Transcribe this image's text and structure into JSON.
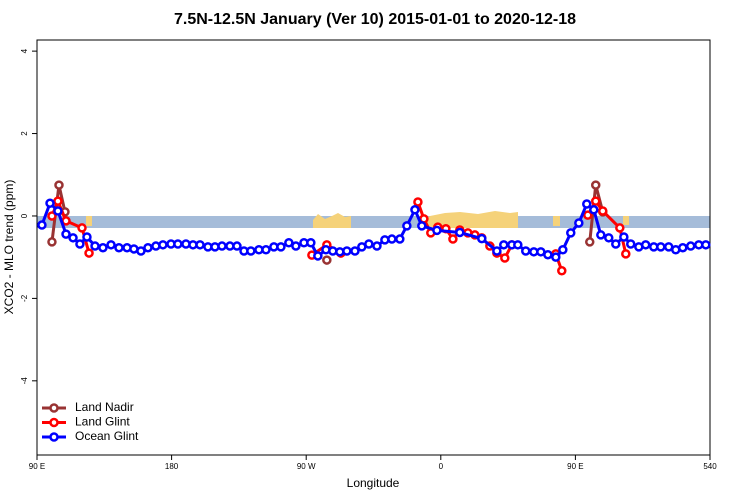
{
  "chart_data": {
    "type": "line",
    "title": "7.5N-12.5N January (Ver 10)   2015-01-01 to 2020-12-18",
    "x_label": "Longitude",
    "y_label": "XCO2 - MLO trend (ppm)",
    "xlim": [
      90,
      540
    ],
    "ylim": [
      -5.8,
      4.27
    ],
    "xticks": [
      {
        "value": 90,
        "label": "90 E"
      },
      180,
      {
        "value": 270,
        "label": "90 W"
      },
      {
        "value": 360,
        "label": "0"
      },
      {
        "value": 450,
        "label": "90 E"
      },
      540
    ],
    "yticks": [
      4,
      2,
      0,
      -2,
      -4
    ],
    "legend": "bottom-left",
    "series": [
      {
        "name": "Land Nadir",
        "color": "#993333",
        "x": [
          100,
          104.7,
          108.7,
          200,
          283.8,
          370,
          459.6,
          463.6,
          468.3
        ],
        "values": [
          -0.63,
          0.75,
          0.1,
          null,
          -1.07,
          null,
          -0.63,
          0.75,
          0.1
        ]
      },
      {
        "name": "Land Glint",
        "color": "#ff0000",
        "x": [
          100,
          104,
          109.4,
          120.1,
          124.8,
          200,
          273.8,
          283.8,
          293.2,
          320,
          344.7,
          348.7,
          353.3,
          358,
          363.4,
          368.1,
          372.7,
          378.1,
          382.8,
          387.4,
          392.8,
          397.5,
          402.8,
          407.5,
          420,
          436.9,
          440.9,
          450,
          458.3,
          463.6,
          468.3,
          479.7,
          483.7
        ],
        "values": [
          0.0,
          0.36,
          -0.12,
          -0.29,
          -0.9,
          null,
          -0.95,
          -0.7,
          -0.9,
          null,
          0.34,
          -0.07,
          -0.41,
          -0.27,
          -0.31,
          -0.56,
          -0.34,
          -0.41,
          -0.46,
          -0.53,
          -0.73,
          -0.9,
          -1.02,
          -0.7,
          null,
          -0.92,
          -1.33,
          null,
          0.02,
          0.36,
          0.12,
          -0.29,
          -0.92
        ]
      },
      {
        "name": "Ocean Glint",
        "color": "#0000ff",
        "x": [
          93.3,
          98.7,
          104,
          109.4,
          114.1,
          118.7,
          123.4,
          128.8,
          134.1,
          139.5,
          144.8,
          150.2,
          154.8,
          159.5,
          164.2,
          169.5,
          174.2,
          179.6,
          184.2,
          189.6,
          194.3,
          199,
          204.3,
          209,
          213.7,
          219,
          223.7,
          228.4,
          233,
          238.4,
          243.1,
          248.4,
          253.1,
          258.4,
          263.1,
          268.5,
          273.1,
          277.8,
          283.2,
          287.8,
          292.5,
          297.2,
          302.6,
          307.2,
          311.9,
          317.3,
          322.6,
          327.3,
          332.6,
          337.3,
          342.7,
          347.3,
          357.4,
          372.7,
          387.4,
          397.5,
          402.1,
          407.5,
          411.5,
          416.8,
          422.2,
          426.9,
          431.6,
          436.9,
          441.6,
          446.9,
          452.3,
          457.6,
          462.3,
          467,
          472.3,
          477,
          482.4,
          487,
          492.4,
          497,
          502.4,
          507.1,
          512.4,
          517.1,
          521.8,
          527.1,
          532.5,
          537.2
        ],
        "values": [
          -0.22,
          0.31,
          0.12,
          -0.44,
          -0.53,
          -0.68,
          -0.51,
          -0.73,
          -0.77,
          -0.7,
          -0.77,
          -0.77,
          -0.8,
          -0.85,
          -0.77,
          -0.73,
          -0.7,
          -0.68,
          -0.68,
          -0.68,
          -0.7,
          -0.7,
          -0.75,
          -0.75,
          -0.73,
          -0.73,
          -0.73,
          -0.85,
          -0.85,
          -0.82,
          -0.82,
          -0.75,
          -0.75,
          -0.65,
          -0.73,
          -0.65,
          -0.65,
          -0.97,
          -0.82,
          -0.85,
          -0.87,
          -0.85,
          -0.85,
          -0.75,
          -0.68,
          -0.73,
          -0.58,
          -0.56,
          -0.56,
          -0.24,
          0.15,
          -0.24,
          -0.35,
          -0.4,
          -0.55,
          -0.85,
          -0.7,
          -0.7,
          -0.7,
          -0.85,
          -0.87,
          -0.87,
          -0.94,
          -1.0,
          -0.82,
          -0.41,
          -0.17,
          0.29,
          0.15,
          -0.46,
          -0.53,
          -0.68,
          -0.51,
          -0.68,
          -0.75,
          -0.7,
          -0.75,
          -0.75,
          -0.75,
          -0.82,
          -0.77,
          -0.73,
          -0.7,
          -0.7
        ]
      }
    ]
  }
}
